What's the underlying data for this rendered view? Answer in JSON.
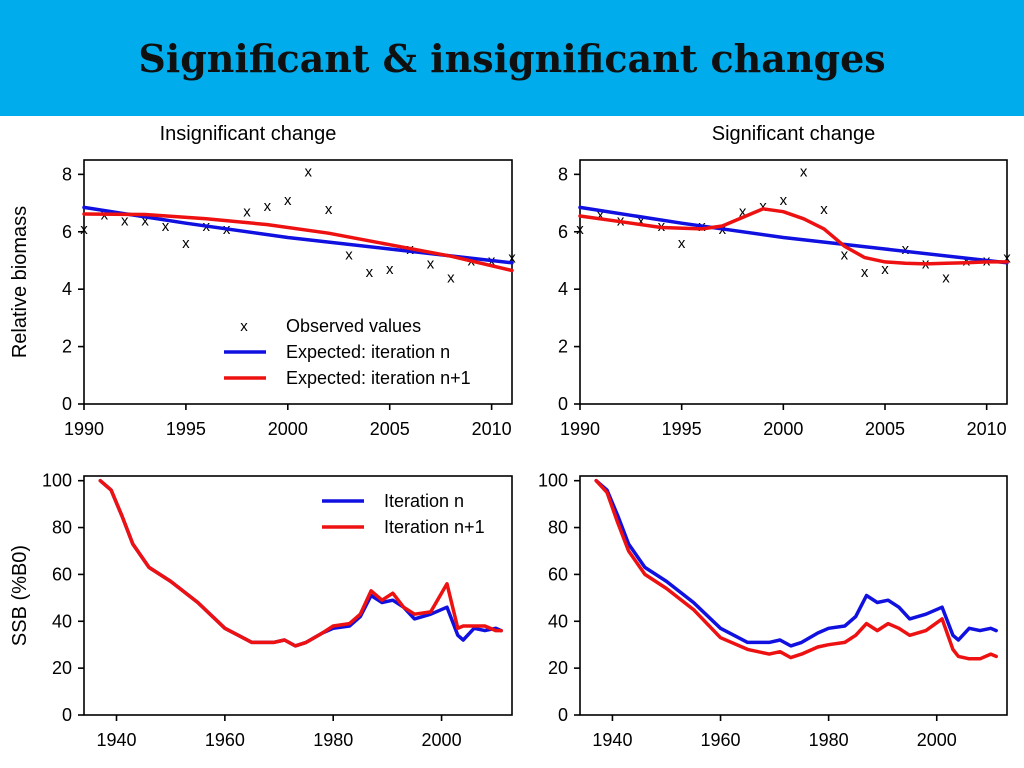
{
  "slide": {
    "title": "Significant & insignificant changes",
    "header_color": "#00acec"
  },
  "colors": {
    "iteration_n": "#1010e0",
    "iteration_n1": "#ee1111"
  },
  "chart_data": [
    {
      "type": "scatter+line",
      "title": "Insignificant change",
      "ylabel": "Relative biomass",
      "xlim": [
        1990,
        2011
      ],
      "ylim": [
        0,
        8.5
      ],
      "xticks": [
        1990,
        1995,
        2000,
        2005,
        2010
      ],
      "yticks": [
        0,
        2,
        4,
        6,
        8
      ],
      "points": {
        "label": "Observed values",
        "marker": "x",
        "x": [
          1990,
          1991,
          1992,
          1993,
          1994,
          1995,
          1996,
          1997,
          1998,
          1999,
          2000,
          2001,
          2002,
          2003,
          2004,
          2005,
          2006,
          2007,
          2008,
          2009,
          2010,
          2011
        ],
        "y": [
          6.1,
          6.6,
          6.4,
          6.4,
          6.2,
          5.6,
          6.2,
          6.1,
          6.7,
          6.9,
          7.1,
          8.1,
          6.8,
          5.2,
          4.6,
          4.7,
          5.4,
          4.9,
          4.4,
          5.0,
          5.0,
          5.1
        ]
      },
      "series": [
        {
          "name": "Expected: iteration n",
          "color": "iteration_n",
          "x": [
            1990,
            1995,
            2000,
            2005,
            2011
          ],
          "y": [
            6.85,
            6.3,
            5.8,
            5.4,
            4.92
          ]
        },
        {
          "name": "Expected: iteration n+1",
          "color": "iteration_n1",
          "x": [
            1990,
            1993,
            1996,
            1999,
            2002,
            2005,
            2008,
            2011
          ],
          "y": [
            6.62,
            6.6,
            6.45,
            6.25,
            5.95,
            5.55,
            5.15,
            4.65
          ]
        }
      ],
      "legend": {
        "placement": "bottom-right",
        "entries": [
          "Observed values",
          "Expected: iteration n",
          "Expected: iteration n+1"
        ]
      }
    },
    {
      "type": "scatter+line",
      "title": "Significant change",
      "ylabel": "",
      "xlim": [
        1990,
        2011
      ],
      "ylim": [
        0,
        8.5
      ],
      "xticks": [
        1990,
        1995,
        2000,
        2005,
        2010
      ],
      "yticks": [
        0,
        2,
        4,
        6,
        8
      ],
      "points": {
        "label": "Observed values",
        "marker": "x",
        "x": [
          1990,
          1991,
          1992,
          1993,
          1994,
          1995,
          1996,
          1997,
          1998,
          1999,
          2000,
          2001,
          2002,
          2003,
          2004,
          2005,
          2006,
          2007,
          2008,
          2009,
          2010,
          2011
        ],
        "y": [
          6.1,
          6.6,
          6.4,
          6.4,
          6.2,
          5.6,
          6.2,
          6.1,
          6.7,
          6.9,
          7.1,
          8.1,
          6.8,
          5.2,
          4.6,
          4.7,
          5.4,
          4.9,
          4.4,
          5.0,
          5.0,
          5.1
        ]
      },
      "series": [
        {
          "name": "Expected: iteration n",
          "color": "iteration_n",
          "x": [
            1990,
            1995,
            2000,
            2005,
            2011
          ],
          "y": [
            6.85,
            6.3,
            5.8,
            5.4,
            4.92
          ]
        },
        {
          "name": "Expected: iteration n+1",
          "color": "iteration_n1",
          "x": [
            1990,
            1992,
            1994,
            1996,
            1997,
            1998,
            1999,
            2000,
            2001,
            2002,
            2003,
            2004,
            2005,
            2006,
            2007,
            2008,
            2009,
            2010,
            2011
          ],
          "y": [
            6.55,
            6.35,
            6.15,
            6.1,
            6.2,
            6.5,
            6.8,
            6.7,
            6.45,
            6.1,
            5.5,
            5.1,
            4.95,
            4.9,
            4.88,
            4.9,
            4.92,
            4.95,
            4.95
          ]
        }
      ]
    },
    {
      "type": "line",
      "title": "",
      "ylabel": "SSB (%B0)",
      "xlim": [
        1934,
        2013
      ],
      "ylim": [
        0,
        102
      ],
      "xticks": [
        1940,
        1960,
        1980,
        2000
      ],
      "yticks": [
        0,
        20,
        40,
        60,
        80,
        100
      ],
      "series": [
        {
          "name": "Iteration n",
          "color": "iteration_n",
          "x": [
            1937,
            1939,
            1941,
            1943,
            1946,
            1950,
            1955,
            1960,
            1965,
            1969,
            1971,
            1973,
            1975,
            1978,
            1980,
            1983,
            1985,
            1987,
            1989,
            1991,
            1993,
            1995,
            1998,
            2001,
            2003,
            2004,
            2006,
            2008,
            2010,
            2011
          ],
          "y": [
            100,
            96,
            85,
            73,
            63,
            57,
            48,
            37,
            31,
            31,
            32,
            29.5,
            31,
            35,
            37,
            38,
            42,
            51,
            48,
            49,
            46,
            41,
            43,
            46,
            34,
            32,
            37,
            36,
            37,
            36
          ]
        },
        {
          "name": "Iteration n+1",
          "color": "iteration_n1",
          "x": [
            1937,
            1939,
            1941,
            1943,
            1946,
            1950,
            1955,
            1960,
            1965,
            1969,
            1971,
            1973,
            1975,
            1978,
            1980,
            1983,
            1985,
            1987,
            1989,
            1991,
            1993,
            1995,
            1998,
            2001,
            2003,
            2004,
            2006,
            2008,
            2010,
            2011
          ],
          "y": [
            100,
            96,
            85,
            73,
            63,
            57,
            48,
            37,
            31,
            31,
            32,
            29.5,
            31,
            35,
            38,
            39,
            43,
            53,
            49,
            52,
            46,
            43,
            44,
            56,
            37,
            38,
            38,
            38,
            36,
            36
          ]
        }
      ],
      "legend": {
        "placement": "top-right",
        "entries": [
          "Iteration n",
          "Iteration n+1"
        ]
      }
    },
    {
      "type": "line",
      "title": "",
      "ylabel": "",
      "xlim": [
        1934,
        2013
      ],
      "ylim": [
        0,
        102
      ],
      "xticks": [
        1940,
        1960,
        1980,
        2000
      ],
      "yticks": [
        0,
        20,
        40,
        60,
        80,
        100
      ],
      "series": [
        {
          "name": "Iteration n",
          "color": "iteration_n",
          "x": [
            1937,
            1939,
            1941,
            1943,
            1946,
            1950,
            1955,
            1960,
            1965,
            1969,
            1971,
            1973,
            1975,
            1978,
            1980,
            1983,
            1985,
            1987,
            1989,
            1991,
            1993,
            1995,
            1998,
            2001,
            2003,
            2004,
            2006,
            2008,
            2010,
            2011
          ],
          "y": [
            100,
            96,
            85,
            73,
            63,
            57,
            48,
            37,
            31,
            31,
            32,
            29.5,
            31,
            35,
            37,
            38,
            42,
            51,
            48,
            49,
            46,
            41,
            43,
            46,
            34,
            32,
            37,
            36,
            37,
            36
          ]
        },
        {
          "name": "Iteration n+1",
          "color": "iteration_n1",
          "x": [
            1937,
            1939,
            1941,
            1943,
            1946,
            1950,
            1955,
            1960,
            1965,
            1969,
            1971,
            1973,
            1975,
            1978,
            1980,
            1983,
            1985,
            1987,
            1989,
            1991,
            1993,
            1995,
            1998,
            2001,
            2003,
            2004,
            2006,
            2008,
            2010,
            2011
          ],
          "y": [
            100,
            95,
            82,
            70,
            60,
            54,
            45,
            33,
            28,
            26,
            27,
            24.5,
            26,
            29,
            30,
            31,
            34,
            39,
            36,
            39,
            37,
            34,
            36,
            41,
            28,
            25,
            24,
            24,
            26,
            25
          ]
        }
      ]
    }
  ]
}
